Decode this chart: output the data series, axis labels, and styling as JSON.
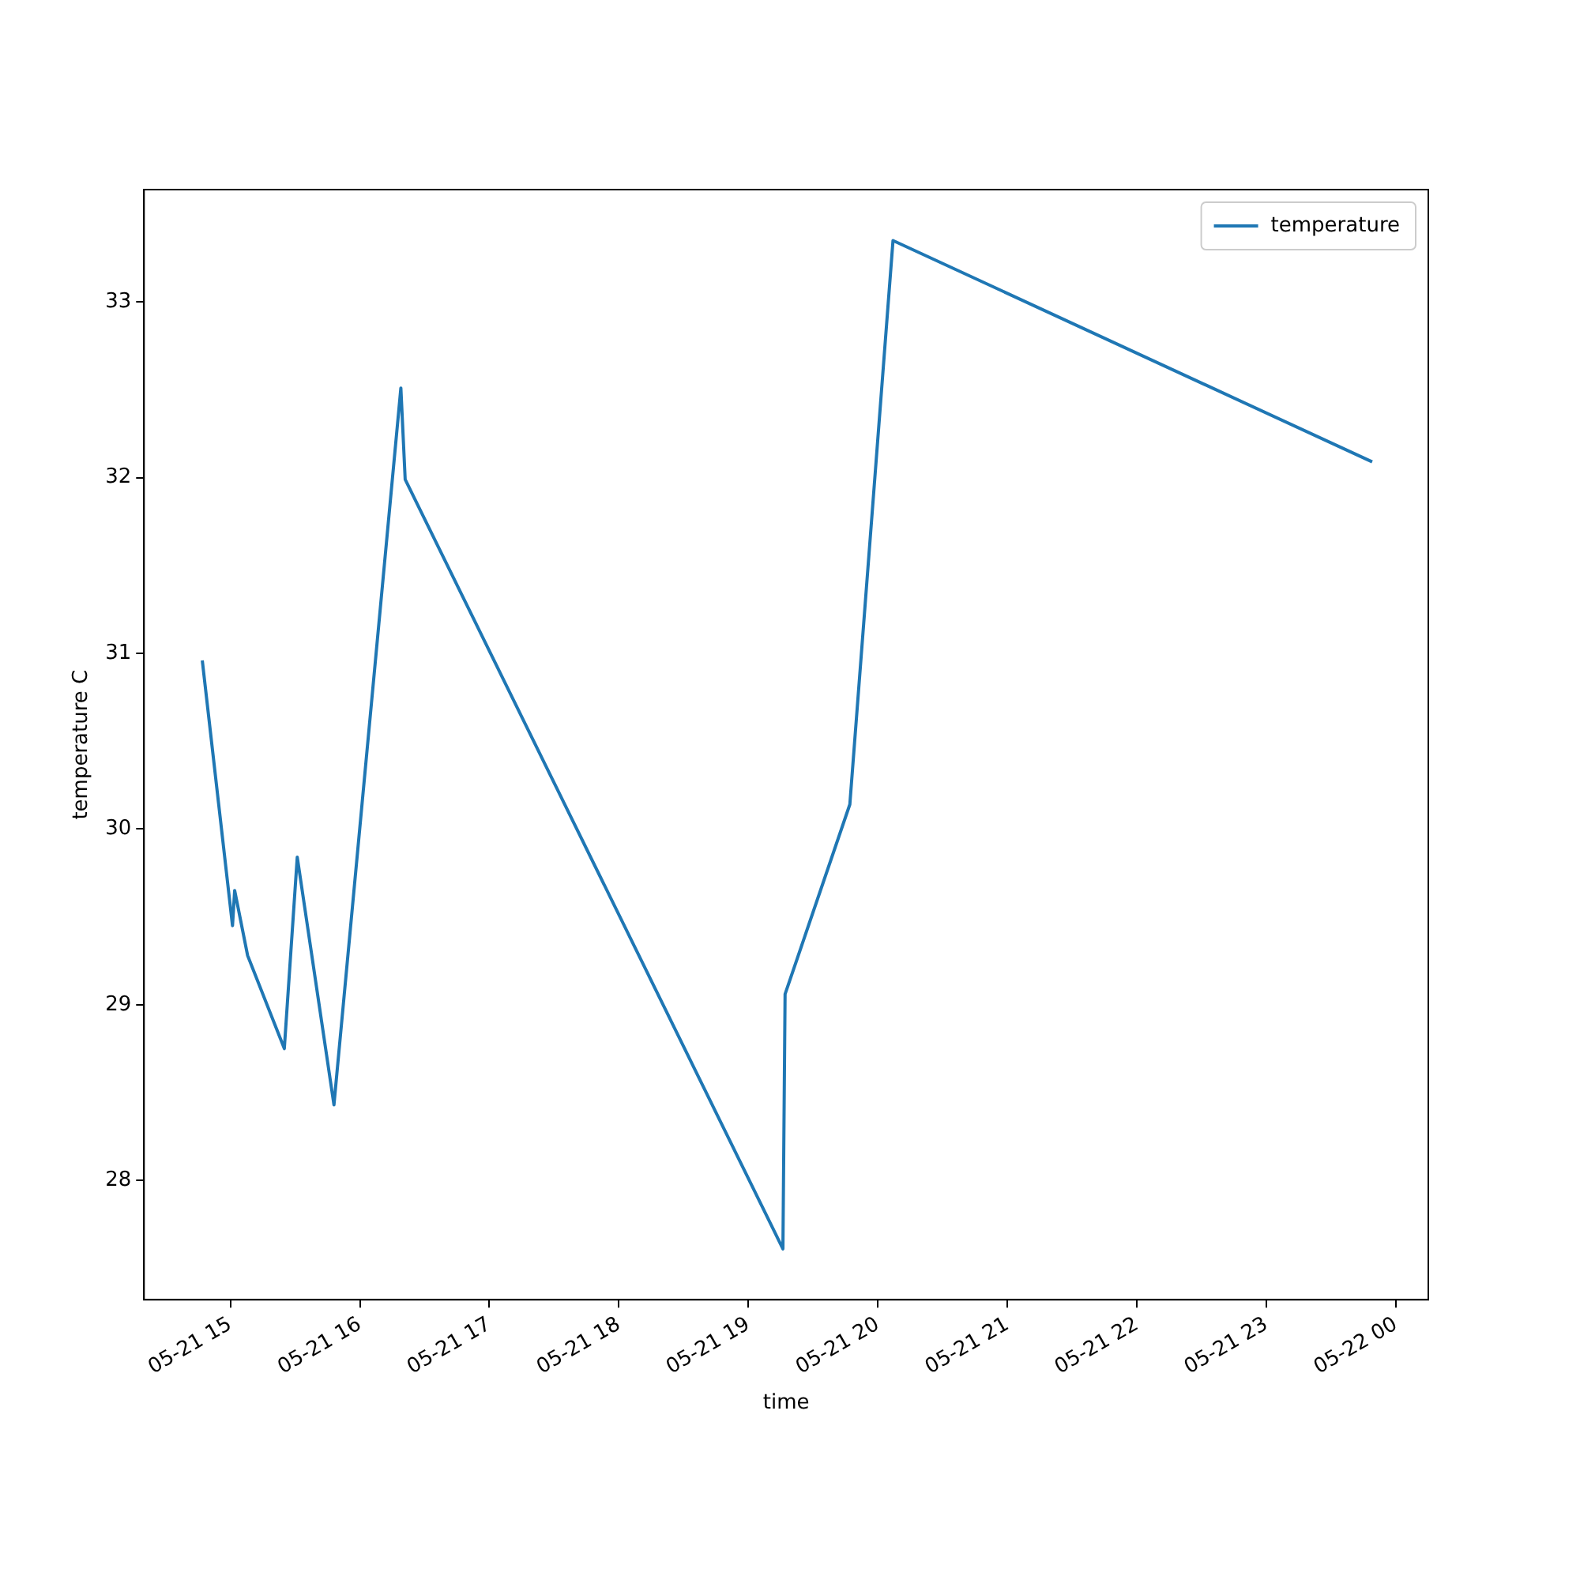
{
  "chart_data": {
    "type": "line",
    "xlabel": "time",
    "ylabel": "temperature C",
    "x": [
      "--05-21T14:47",
      "--05-21T15:01",
      "--05-21T15:02",
      "--05-21T15:08",
      "--05-21T15:25",
      "--05-21T15:31",
      "--05-21T15:48",
      "--05-21T16:19",
      "--05-21T16:21",
      "--05-21T19:16",
      "--05-21T19:17",
      "--05-21T19:47",
      "--05-21T20:07",
      "--05-21T23:49"
    ],
    "series": [
      {
        "name": "temperature",
        "color": "#1f77b4",
        "values": [
          30.96,
          29.45,
          29.65,
          29.28,
          28.75,
          29.84,
          28.43,
          32.51,
          31.99,
          27.61,
          29.06,
          30.14,
          33.35,
          32.09
        ]
      }
    ],
    "xlim": [
      "--05-21T14:20",
      "--05-22T00:15"
    ],
    "ylim": [
      27.32,
      33.64
    ],
    "xticks": [
      {
        "value": "--05-21T15:00",
        "label": "05-21 15"
      },
      {
        "value": "--05-21T16:00",
        "label": "05-21 16"
      },
      {
        "value": "--05-21T17:00",
        "label": "05-21 17"
      },
      {
        "value": "--05-21T18:00",
        "label": "05-21 18"
      },
      {
        "value": "--05-21T19:00",
        "label": "05-21 19"
      },
      {
        "value": "--05-21T20:00",
        "label": "05-21 20"
      },
      {
        "value": "--05-21T21:00",
        "label": "05-21 21"
      },
      {
        "value": "--05-21T22:00",
        "label": "05-21 22"
      },
      {
        "value": "--05-21T23:00",
        "label": "05-21 23"
      },
      {
        "value": "--05-22T00:00",
        "label": "05-22 00"
      }
    ],
    "yticks": [
      28,
      29,
      30,
      31,
      32,
      33
    ],
    "legend": "top right",
    "grid": false,
    "marker": "none",
    "line_style": "solid"
  }
}
